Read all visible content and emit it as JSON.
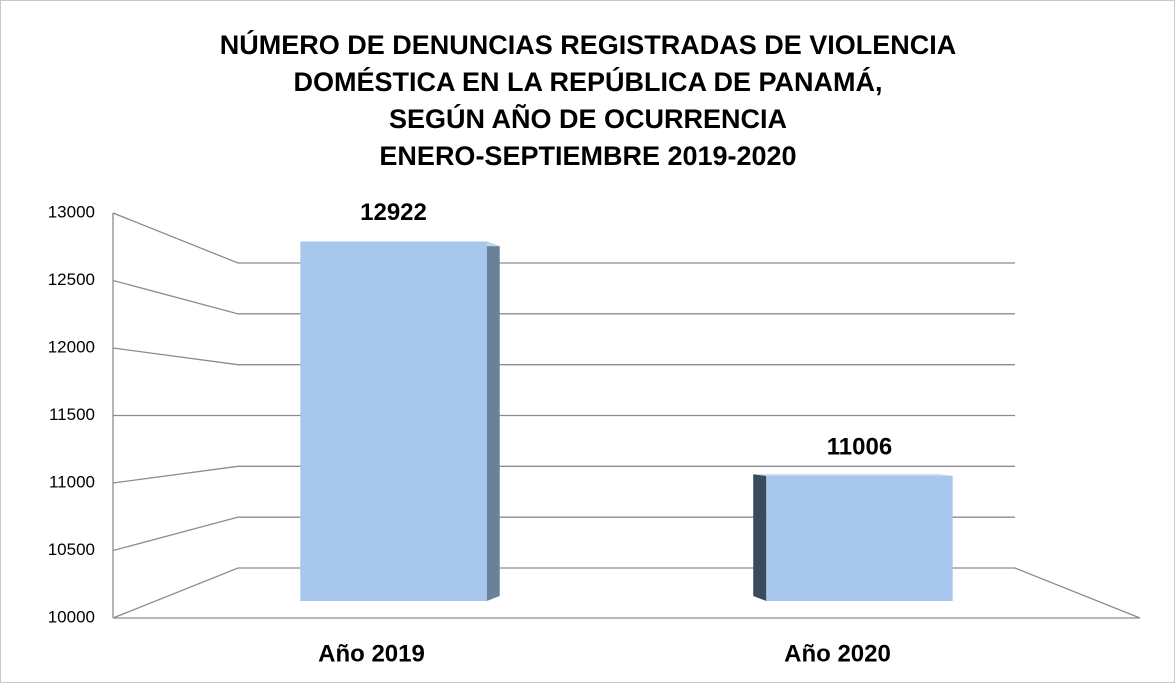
{
  "chart_data": {
    "type": "bar3d",
    "title": [
      "NÚMERO DE DENUNCIAS REGISTRADAS DE VIOLENCIA",
      "DOMÉSTICA EN LA REPÚBLICA DE PANAMÁ,",
      "SEGÚN AÑO DE OCURRENCIA",
      "ENERO-SEPTIEMBRE 2019-2020"
    ],
    "categories": [
      "Año 2019",
      "Año 2020"
    ],
    "values": [
      12922,
      11006
    ],
    "color": "#a7c8ec",
    "ylim": [
      10000,
      13000
    ],
    "yticks": [
      10000,
      10500,
      11000,
      11500,
      12000,
      12500,
      13000
    ],
    "grid": true
  }
}
